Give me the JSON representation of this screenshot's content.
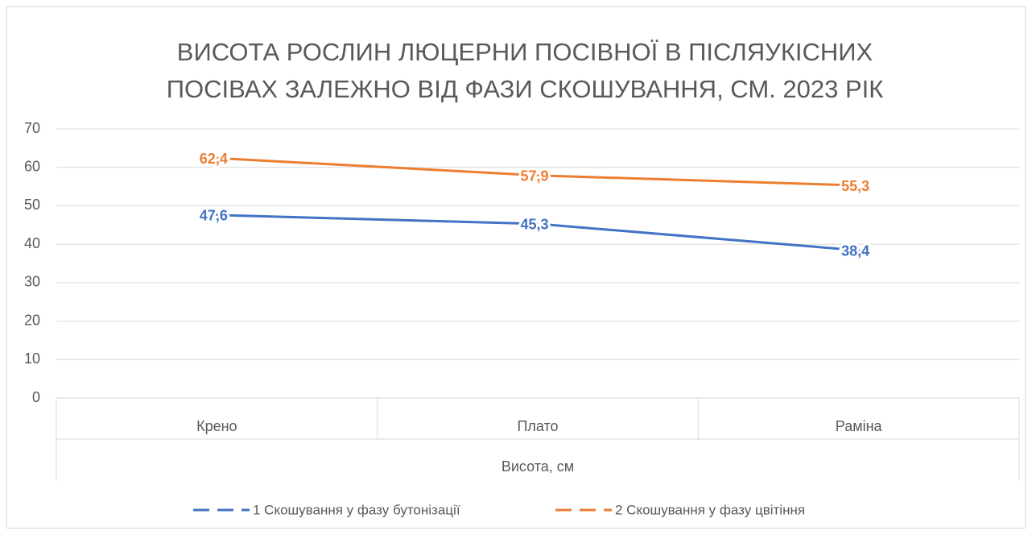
{
  "chart_data": {
    "type": "line",
    "title": [
      "ВИСОТА РОСЛИН ЛЮЦЕРНИ ПОСІВНОЇ В ПІСЛЯУКІСНИХ",
      "ПОСІВАХ ЗАЛЕЖНО ВІД ФАЗИ СКОШУВАННЯ, СМ. 2023 РІК"
    ],
    "categories": [
      "Крено",
      "Плато",
      "Раміна"
    ],
    "category_group": "Висота, см",
    "series": [
      {
        "name": "1 Скошування у фазу бутонізації",
        "color": "#4472c4",
        "values": [
          47.6,
          45.3,
          38.4
        ],
        "value_labels": [
          "47,6",
          "45,3",
          "38,4"
        ]
      },
      {
        "name": "2 Скошування у фазу цвітіння",
        "color": "#ed7d31",
        "values": [
          62.4,
          57.9,
          55.3
        ],
        "value_labels": [
          "62,4",
          "57,9",
          "55,3"
        ]
      }
    ],
    "ylim": [
      0,
      70
    ],
    "yticks": [
      0,
      10,
      20,
      30,
      40,
      50,
      60,
      70
    ],
    "grid": true,
    "legend": "bottom"
  }
}
